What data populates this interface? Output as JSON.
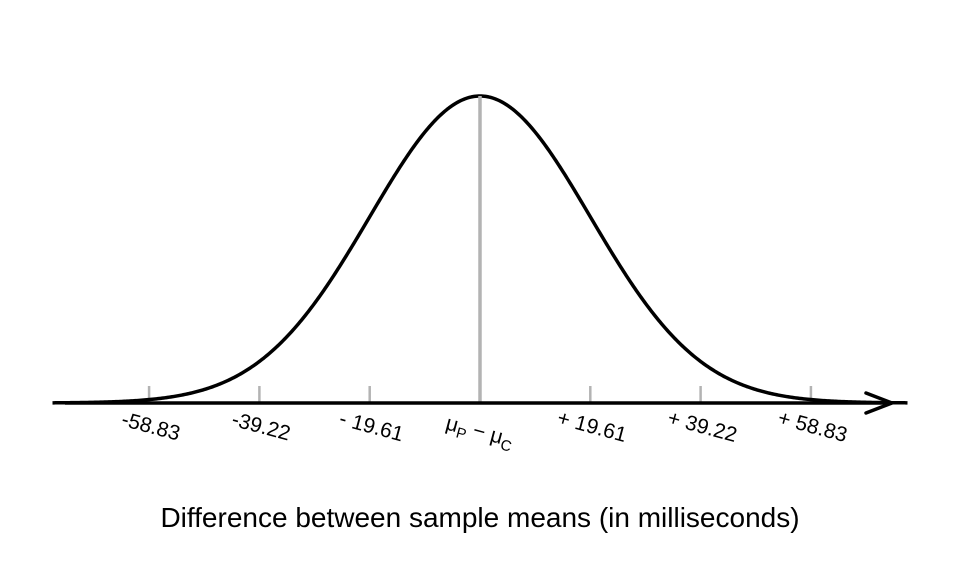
{
  "chart_data": {
    "type": "line",
    "title": "",
    "xlabel": "Difference between sample means (in milliseconds)",
    "ylabel": "",
    "distribution": "normal",
    "mean": 0,
    "sd": 19.61,
    "xlim": [
      -76,
      76
    ],
    "grid": false,
    "legend": "none",
    "center_label": {
      "mu1": "μ",
      "sub1": "P",
      "sep": " − ",
      "mu2": "μ",
      "sub2": "C"
    },
    "ticks": [
      {
        "value": -58.83,
        "label": "-58.83"
      },
      {
        "value": -39.22,
        "label": "-39.22"
      },
      {
        "value": -19.61,
        "label": "- 19.61"
      },
      {
        "value": 0,
        "label": ""
      },
      {
        "value": 19.61,
        "label": "+ 19.61"
      },
      {
        "value": 39.22,
        "label": "+ 39.22"
      },
      {
        "value": 58.83,
        "label": "+ 58.83"
      }
    ],
    "colors": {
      "curve": "#000000",
      "axis": "#000000",
      "center_line": "#b3b3b3",
      "tick_marks": "#b3b3b3"
    }
  }
}
